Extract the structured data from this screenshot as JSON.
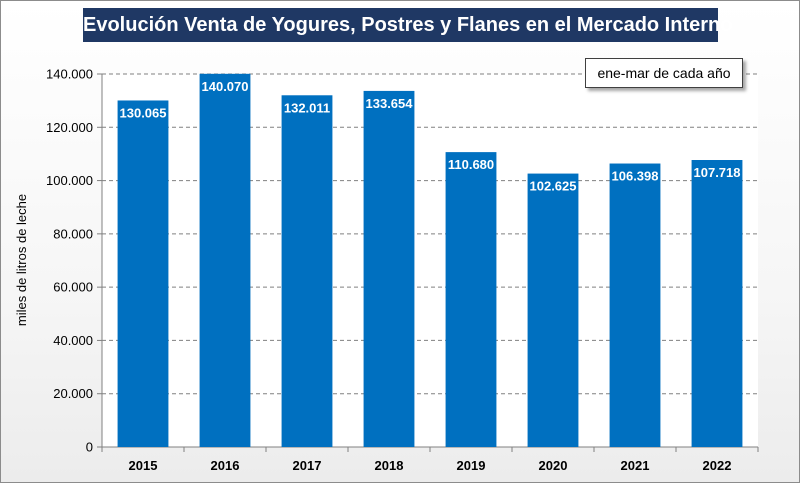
{
  "colors": {
    "bar": "#0070c0",
    "title_bg": "#1f3864",
    "title_text": "#ffffff",
    "data_label": "#ffffff",
    "gridline": "#808080"
  },
  "chart_data": {
    "type": "bar",
    "title": "Evolución Venta de Yogures, Postres y Flanes en el Mercado Interno",
    "annotation": "ene-mar de cada año",
    "xlabel": "",
    "ylabel": "miles de litros de leche",
    "categories": [
      "2015",
      "2016",
      "2017",
      "2018",
      "2019",
      "2020",
      "2021",
      "2022"
    ],
    "values": [
      130065,
      140070,
      132011,
      133654,
      110680,
      102625,
      106398,
      107718
    ],
    "value_labels": [
      "130.065",
      "140.070",
      "132.011",
      "133.654",
      "110.680",
      "102.625",
      "106.398",
      "107.718"
    ],
    "ylim": [
      0,
      140000
    ],
    "yticks": [
      0,
      20000,
      40000,
      60000,
      80000,
      100000,
      120000,
      140000
    ],
    "ytick_labels": [
      "0",
      "20.000",
      "40.000",
      "60.000",
      "80.000",
      "100.000",
      "120.000",
      "140.000"
    ],
    "grid": "horizontal dashed",
    "legend": "none"
  }
}
